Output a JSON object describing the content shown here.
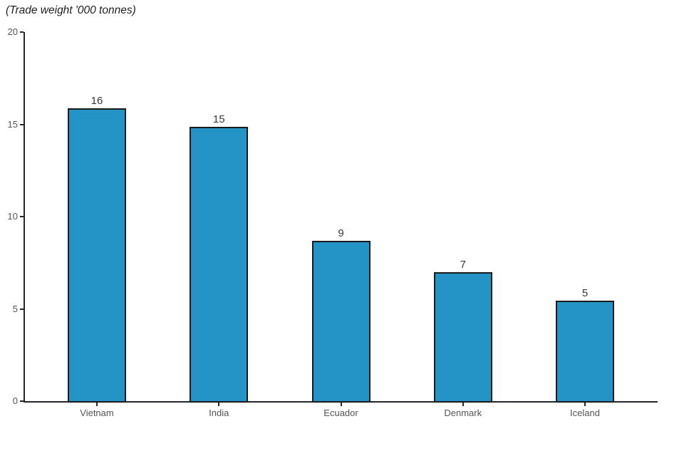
{
  "chart_data": {
    "type": "bar",
    "title": "(Trade weight '000 tonnes)",
    "xlabel": "",
    "ylabel": "(Trade weight '000 tonnes)",
    "categories": [
      "Vietnam",
      "India",
      "Ecuador",
      "Denmark",
      "Iceland"
    ],
    "values": [
      16,
      15,
      9,
      7,
      5
    ],
    "bar_values_visual": [
      15.8,
      14.8,
      8.62,
      6.93,
      5.36
    ],
    "ylim": [
      0,
      20
    ],
    "y_ticks": [
      0,
      5,
      10,
      15,
      20
    ],
    "grid": false,
    "legend": "none",
    "colors": {
      "bar_fill": "#2493c5",
      "bar_edge": "#1a1a1a",
      "axis_line": "#24272b",
      "tick_label": "#555555",
      "value_label": "#383838",
      "title": "#1f1f1f",
      "background": "#ffffff"
    }
  }
}
